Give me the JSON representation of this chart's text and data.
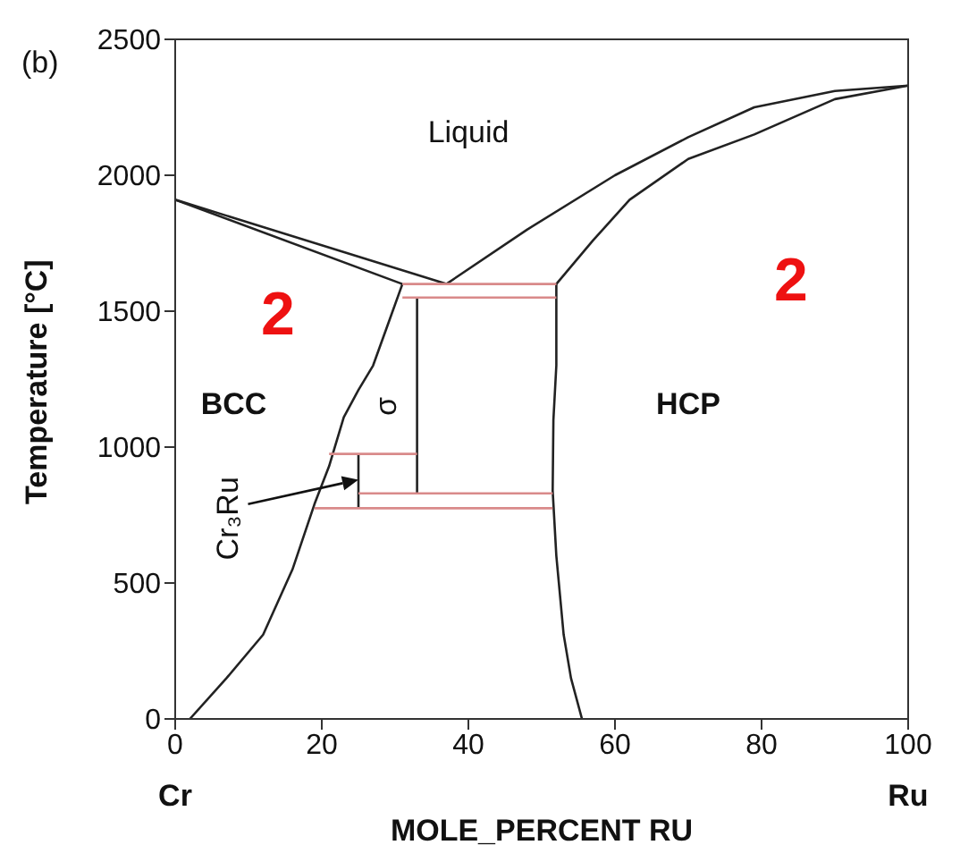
{
  "chart_data": {
    "type": "line",
    "xlabel": "MOLE_PERCENT RU",
    "ylabel": "Temperature [°C]",
    "xlim": [
      0,
      100
    ],
    "ylim": [
      0,
      2500
    ],
    "xticks": [
      0,
      20,
      40,
      60,
      80,
      100
    ],
    "yticks": [
      0,
      500,
      1000,
      1500,
      2000,
      2500
    ],
    "marker": "none",
    "line_style": "solid",
    "series": [
      {
        "color": "#222222",
        "x": [
          0,
          37
        ],
        "values": [
          1910,
          1600
        ]
      },
      {
        "color": "#222222",
        "x": [
          0,
          31
        ],
        "values": [
          1910,
          1600
        ]
      },
      {
        "color": "#222222",
        "x": [
          37,
          48,
          60,
          70,
          79,
          90,
          100
        ],
        "values": [
          1600,
          1800,
          2000,
          2140,
          2250,
          2310,
          2330
        ]
      },
      {
        "color": "#222222",
        "x": [
          52,
          57,
          62,
          70,
          79,
          90,
          100
        ],
        "values": [
          1600,
          1760,
          1910,
          2060,
          2150,
          2280,
          2330
        ]
      },
      {
        "color": "#222222",
        "x": [
          2,
          7,
          12,
          16,
          19,
          21,
          23,
          25,
          27,
          29,
          31
        ],
        "values": [
          0,
          150,
          310,
          550,
          790,
          930,
          1110,
          1210,
          1300,
          1450,
          1600
        ]
      },
      {
        "color": "#222222",
        "x": [
          52,
          52,
          52,
          51.6,
          51.5,
          52,
          53,
          54,
          55.5
        ],
        "values": [
          1600,
          1550,
          1300,
          1100,
          840,
          600,
          310,
          150,
          0
        ]
      },
      {
        "color": "#222222",
        "x": [
          33,
          33
        ],
        "values": [
          1550,
          830
        ]
      },
      {
        "color": "#222222",
        "x": [
          25,
          25
        ],
        "values": [
          975,
          775
        ]
      },
      {
        "color": "#d98a8a",
        "x": [
          31,
          52
        ],
        "values": [
          1600,
          1600
        ]
      },
      {
        "color": "#d98a8a",
        "x": [
          31,
          52
        ],
        "values": [
          1550,
          1550
        ]
      },
      {
        "color": "#d98a8a",
        "x": [
          21,
          33
        ],
        "values": [
          975,
          975
        ]
      },
      {
        "color": "#d98a8a",
        "x": [
          25,
          51.5
        ],
        "values": [
          830,
          830
        ]
      },
      {
        "color": "#d98a8a",
        "x": [
          19,
          51.5
        ],
        "values": [
          775,
          775
        ]
      }
    ],
    "annotations": [
      "(b)",
      "Liquid",
      "BCC",
      "HCP",
      "σ",
      "2",
      "2",
      "Cr",
      "Ru",
      "Cr₃Ru"
    ]
  }
}
